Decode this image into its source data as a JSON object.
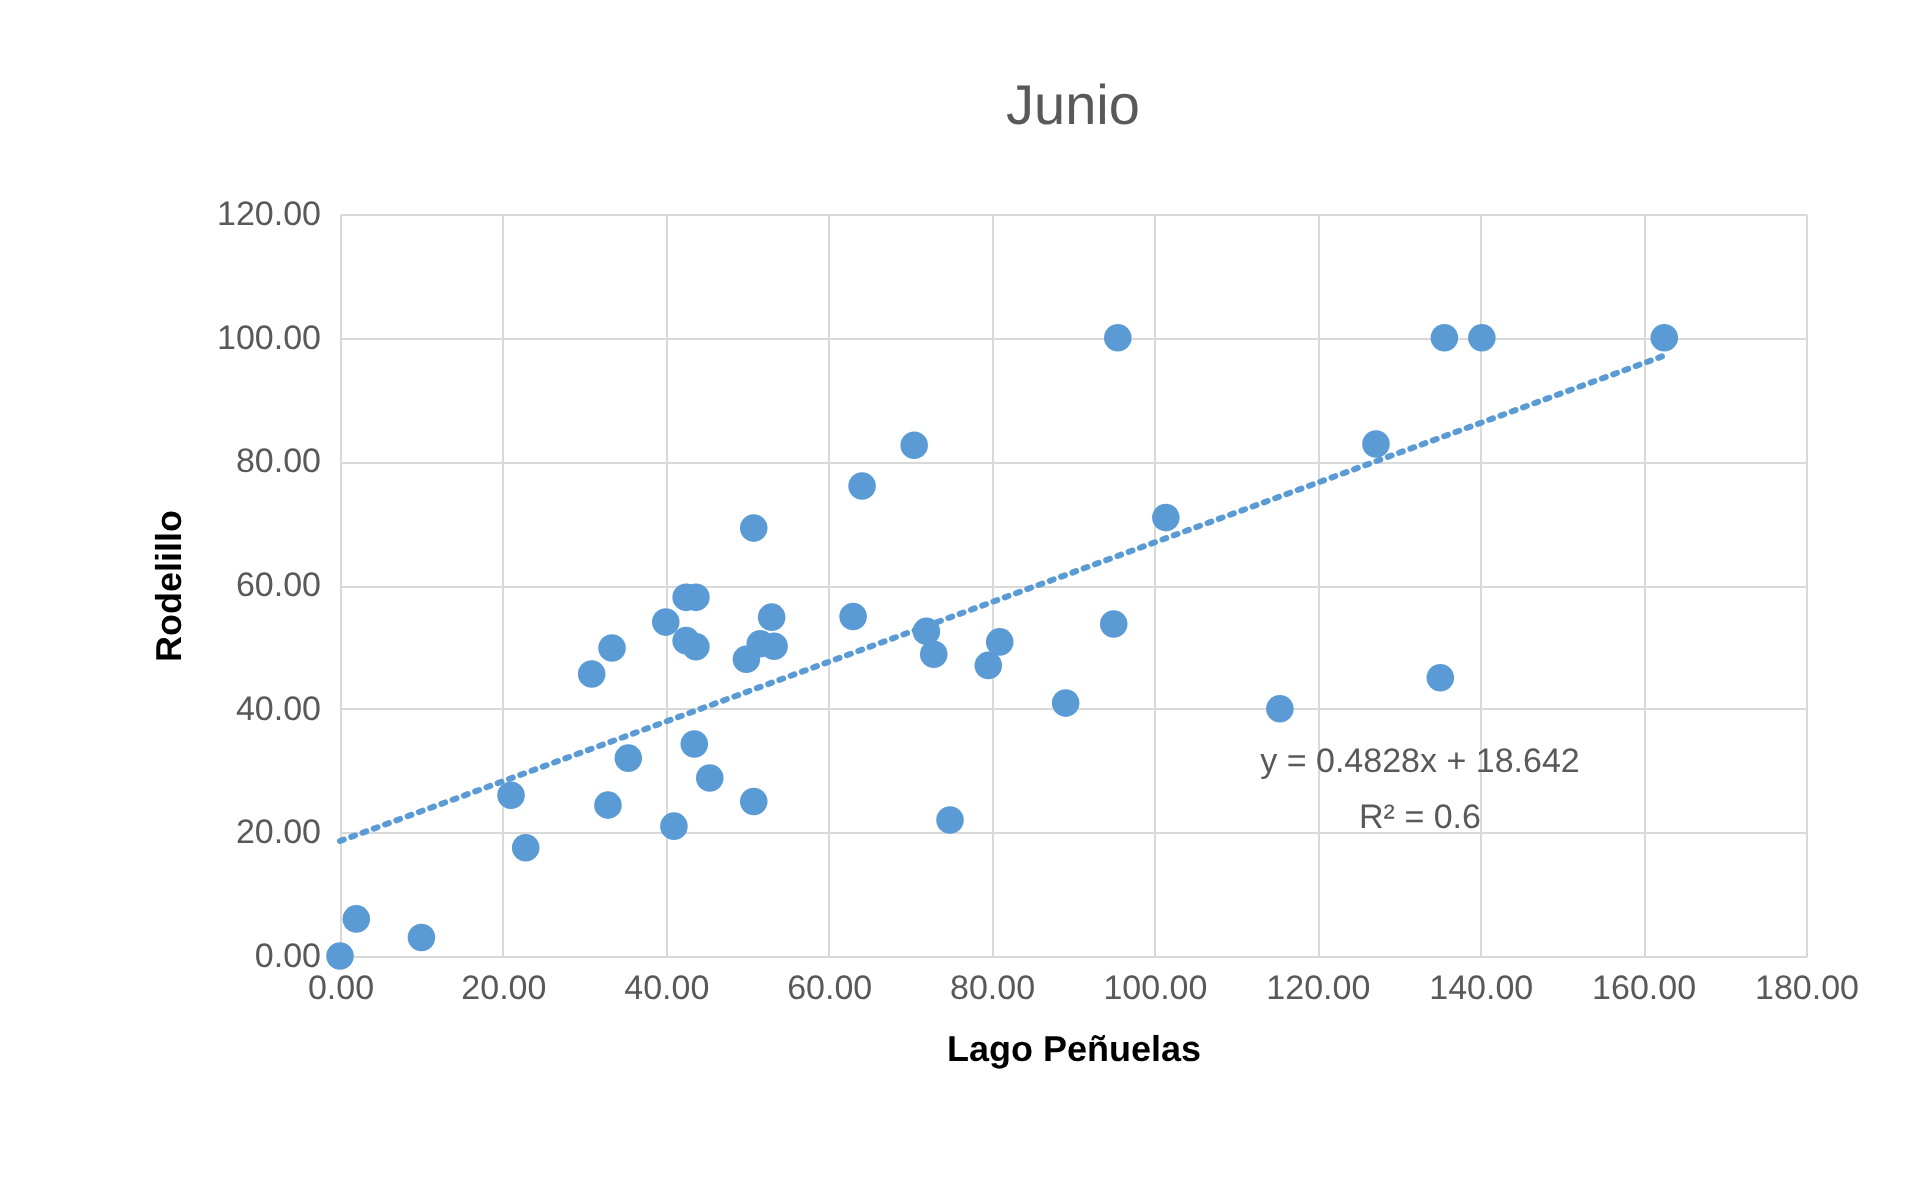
{
  "chart_data": {
    "type": "scatter",
    "title": "Junio",
    "xlabel": "Lago Peñuelas",
    "ylabel": "Rodelillo",
    "xlim": [
      0,
      180
    ],
    "ylim": [
      0,
      120
    ],
    "xticks": [
      {
        "value": 0,
        "label": "0.00"
      },
      {
        "value": 20,
        "label": "20.00"
      },
      {
        "value": 40,
        "label": "40.00"
      },
      {
        "value": 60,
        "label": "60.00"
      },
      {
        "value": 80,
        "label": "80.00"
      },
      {
        "value": 100,
        "label": "100.00"
      },
      {
        "value": 120,
        "label": "120.00"
      },
      {
        "value": 140,
        "label": "140.00"
      },
      {
        "value": 160,
        "label": "160.00"
      },
      {
        "value": 180,
        "label": "180.00"
      }
    ],
    "yticks": [
      {
        "value": 0,
        "label": "0.00"
      },
      {
        "value": 20,
        "label": "20.00"
      },
      {
        "value": 40,
        "label": "40.00"
      },
      {
        "value": 60,
        "label": "60.00"
      },
      {
        "value": 80,
        "label": "80.00"
      },
      {
        "value": 100,
        "label": "100.00"
      },
      {
        "value": 120,
        "label": "120.00"
      }
    ],
    "grid": true,
    "series": [
      {
        "color": "#5b9bd5",
        "marker": "circle",
        "x": [
          0,
          2,
          10,
          21,
          22.8,
          30.9,
          33.4,
          32.9,
          35.4,
          40,
          41,
          42.5,
          43.7,
          42.5,
          43.7,
          43.5,
          45.4,
          49.9,
          50.8,
          50.8,
          51.6,
          53,
          53.3,
          63,
          64.1,
          70.5,
          72,
          72.9,
          74.9,
          79.6,
          81,
          89.1,
          95,
          95.5,
          101.4,
          115.4,
          127.2,
          135.1,
          135.6,
          140.2,
          162.6
        ],
        "values": [
          0,
          6,
          3,
          26,
          17.5,
          45.6,
          49.8,
          24.4,
          32,
          54,
          21,
          58,
          58,
          51,
          50,
          34.3,
          28.8,
          48,
          69.2,
          25,
          50.5,
          54.8,
          50.1,
          54.9,
          76,
          82.6,
          52.5,
          48.8,
          22,
          47,
          50.8,
          40.9,
          53.7,
          100,
          70.9,
          40,
          82.8,
          45,
          100,
          100,
          100
        ]
      },
      {
        "type": "line",
        "color": "#5b9bd5",
        "line_style": "dotted",
        "x": [
          0,
          162.6
        ],
        "values": [
          18.6,
          97.1
        ]
      }
    ],
    "annotations": [
      "y = 0.4828x + 18.642",
      "R² = 0.6"
    ]
  }
}
